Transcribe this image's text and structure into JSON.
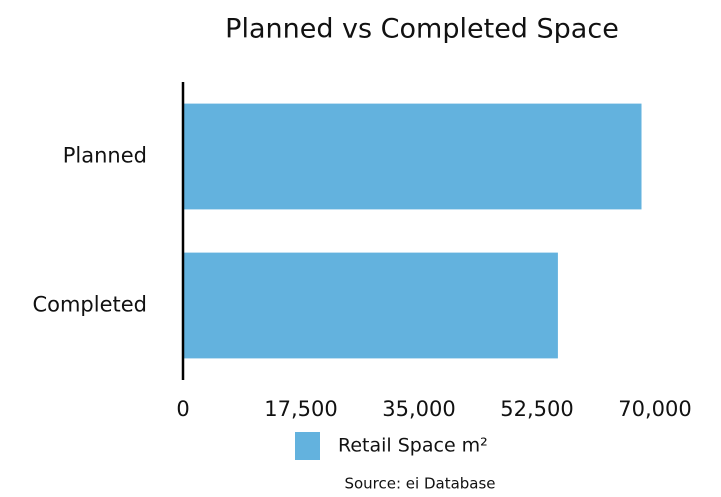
{
  "chart_data": {
    "type": "bar",
    "orientation": "horizontal",
    "title": "Planned vs Completed Space",
    "categories": [
      "Planned",
      "Completed"
    ],
    "series": [
      {
        "name": "Retail Space m²",
        "color": "#63b2de",
        "values": [
          68000,
          55600
        ]
      }
    ],
    "xlim": [
      0,
      70000
    ],
    "xticks": [
      0,
      {
        "value": 17500,
        "label": "17,500"
      },
      {
        "value": 35000,
        "label": "35,000"
      },
      {
        "value": 52500,
        "label": "52,500"
      },
      {
        "value": 70000,
        "label": "70,000"
      }
    ],
    "grid": false,
    "legend": "bottom",
    "source": "Source: ei Database"
  }
}
